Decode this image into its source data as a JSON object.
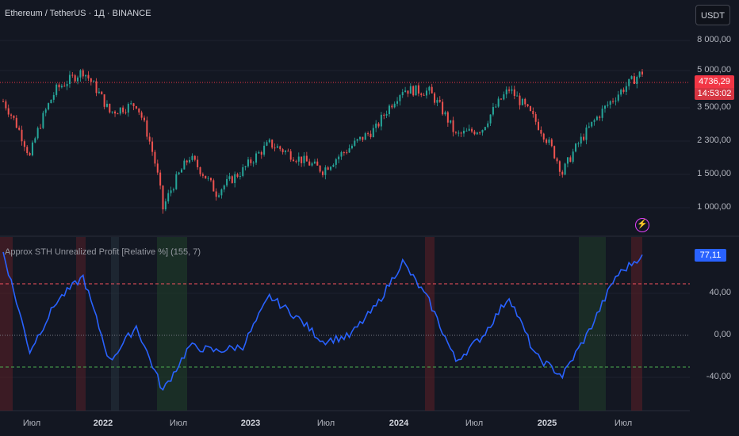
{
  "header": {
    "symbol_title": "Ethereum / TetherUS · 1Д · BINANCE"
  },
  "price_panel": {
    "currency_button": "USDT",
    "axis_labels": [
      "8 000,00",
      "5 000,00",
      "3 500,00",
      "2 300,00",
      "1 500,00",
      "1 000,00"
    ],
    "last_price": "4736,29",
    "countdown": "14:53:02",
    "colors": {
      "up": "#26a69a",
      "down": "#ef5350",
      "price_line": "#f23645"
    }
  },
  "indicator_panel": {
    "title": "Approx STH Unrealized Profit [Relative %] (155, 7)",
    "current_value": "77,11",
    "axis_labels": [
      "40,00",
      "0,00",
      "-40,00"
    ],
    "line_color": "#2962ff",
    "upper_band_color": "#f7525f",
    "lower_band_color": "#4caf50"
  },
  "time_axis": {
    "labels": [
      "Июл",
      "2022",
      "Июл",
      "2023",
      "Июл",
      "2024",
      "Июл",
      "2025",
      "Июл"
    ]
  },
  "chart_data": [
    {
      "type": "line",
      "series": [
        {
          "name": "ETHUSDT",
          "x": [
            "2021-05",
            "2021-07",
            "2021-09",
            "2021-11",
            "2022-01",
            "2022-03",
            "2022-06",
            "2022-08",
            "2022-11",
            "2023-01",
            "2023-04",
            "2023-06",
            "2023-09",
            "2023-11",
            "2024-01",
            "2024-03",
            "2024-05",
            "2024-08",
            "2024-10",
            "2024-12",
            "2025-02",
            "2025-04",
            "2025-06",
            "2025-07",
            "2025-08"
          ],
          "values": [
            3400,
            1800,
            3900,
            4800,
            3000,
            3300,
            1000,
            1800,
            1200,
            1550,
            2100,
            1800,
            1550,
            2000,
            2500,
            3900,
            3800,
            2300,
            2500,
            3900,
            2700,
            1500,
            2500,
            3600,
            4736.29
          ]
        }
      ],
      "ylim": [
        900,
        9000
      ],
      "scale": "log"
    },
    {
      "type": "line",
      "series": [
        {
          "name": "Approx STH Unrealized Profit [Relative %]",
          "x": [
            "2021-05",
            "2021-07",
            "2021-09",
            "2021-11",
            "2022-01",
            "2022-03",
            "2022-06",
            "2022-08",
            "2022-11",
            "2023-01",
            "2023-04",
            "2023-06",
            "2023-09",
            "2023-11",
            "2024-01",
            "2024-03",
            "2024-05",
            "2024-08",
            "2024-10",
            "2024-12",
            "2025-02",
            "2025-04",
            "2025-06",
            "2025-07",
            "2025-08"
          ],
          "values": [
            80,
            -20,
            30,
            55,
            -30,
            5,
            -60,
            -15,
            -20,
            -15,
            35,
            15,
            -10,
            -5,
            25,
            70,
            30,
            -30,
            -5,
            35,
            -25,
            -45,
            0,
            55,
            77.11
          ]
        }
      ],
      "ylim": [
        -80,
        95
      ],
      "hlines": [
        50,
        0,
        -30
      ]
    }
  ]
}
